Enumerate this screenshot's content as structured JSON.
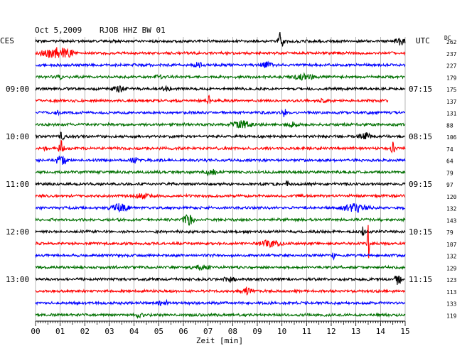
{
  "header": {
    "date": "Oct 5,2009",
    "station": "RJOB HHZ BW 01",
    "left_tz": "CES",
    "right_tz": "UTC",
    "dc_label": "DC"
  },
  "chart_data": {
    "type": "line",
    "title": "",
    "xlabel": "Zeit [min]",
    "xlim": [
      0,
      15
    ],
    "x_ticks": [
      "00",
      "01",
      "02",
      "03",
      "04",
      "05",
      "06",
      "07",
      "08",
      "09",
      "10",
      "11",
      "12",
      "13",
      "14",
      "15"
    ],
    "trace_colors": [
      "#000000",
      "#ff0000",
      "#0000ff",
      "#007000"
    ],
    "left_time_labels": [
      {
        "row": 4,
        "text": "09:00"
      },
      {
        "row": 8,
        "text": "10:00"
      },
      {
        "row": 12,
        "text": "11:00"
      },
      {
        "row": 16,
        "text": "12:00"
      },
      {
        "row": 20,
        "text": "13:00"
      }
    ],
    "right_time_labels": [
      {
        "row": 4,
        "text": "07:15"
      },
      {
        "row": 8,
        "text": "08:15"
      },
      {
        "row": 12,
        "text": "09:15"
      },
      {
        "row": 16,
        "text": "10:15"
      },
      {
        "row": 20,
        "text": "11:15"
      }
    ],
    "dc_offsets": [
      262,
      237,
      227,
      179,
      175,
      137,
      131,
      88,
      106,
      74,
      64,
      79,
      97,
      120,
      132,
      143,
      79,
      107,
      132,
      129,
      123,
      113,
      133,
      119
    ],
    "rows": 24,
    "trace_end_min": [
      15,
      15,
      15,
      15,
      15,
      14.3,
      15,
      15,
      15,
      15,
      15,
      15,
      15,
      15,
      15,
      15,
      15,
      15,
      15,
      15,
      15,
      15,
      15,
      15
    ],
    "events": [
      {
        "row": 0,
        "t": 9.95,
        "amp": 14,
        "dur": 0.15
      },
      {
        "row": 0,
        "t": 14.8,
        "amp": 5,
        "dur": 0.3
      },
      {
        "row": 1,
        "t": 0.9,
        "amp": 9,
        "dur": 0.9
      },
      {
        "row": 2,
        "t": 9.4,
        "amp": 4,
        "dur": 0.4
      },
      {
        "row": 2,
        "t": 6.6,
        "amp": 3,
        "dur": 0.3
      },
      {
        "row": 3,
        "t": 10.9,
        "amp": 4,
        "dur": 0.6
      },
      {
        "row": 3,
        "t": 5.0,
        "amp": 3,
        "dur": 0.2
      },
      {
        "row": 3,
        "t": 1.0,
        "amp": 3,
        "dur": 0.2
      },
      {
        "row": 4,
        "t": 3.4,
        "amp": 4,
        "dur": 0.4
      },
      {
        "row": 4,
        "t": 5.3,
        "amp": 3,
        "dur": 0.3
      },
      {
        "row": 5,
        "t": 7.0,
        "amp": 9,
        "dur": 0.12
      },
      {
        "row": 5,
        "t": 11.7,
        "amp": 3,
        "dur": 0.2
      },
      {
        "row": 6,
        "t": 10.1,
        "amp": 6,
        "dur": 0.15
      },
      {
        "row": 6,
        "t": 0.9,
        "amp": 3,
        "dur": 0.2
      },
      {
        "row": 7,
        "t": 8.4,
        "amp": 5,
        "dur": 0.6
      },
      {
        "row": 7,
        "t": 10.4,
        "amp": 3,
        "dur": 0.3
      },
      {
        "row": 8,
        "t": 1.05,
        "amp": 6,
        "dur": 0.15
      },
      {
        "row": 8,
        "t": 13.4,
        "amp": 4,
        "dur": 0.4
      },
      {
        "row": 9,
        "t": 1.05,
        "amp": 10,
        "dur": 0.15
      },
      {
        "row": 9,
        "t": 14.5,
        "amp": 10,
        "dur": 0.12
      },
      {
        "row": 9,
        "t": 0.4,
        "amp": 4,
        "dur": 0.1
      },
      {
        "row": 10,
        "t": 1.05,
        "amp": 8,
        "dur": 0.3
      },
      {
        "row": 10,
        "t": 4.0,
        "amp": 4,
        "dur": 0.2
      },
      {
        "row": 11,
        "t": 7.1,
        "amp": 4,
        "dur": 0.4
      },
      {
        "row": 12,
        "t": 10.2,
        "amp": 6,
        "dur": 0.12
      },
      {
        "row": 13,
        "t": 4.3,
        "amp": 3,
        "dur": 0.5
      },
      {
        "row": 14,
        "t": 3.4,
        "amp": 5,
        "dur": 0.6
      },
      {
        "row": 14,
        "t": 13.0,
        "amp": 6,
        "dur": 0.8
      },
      {
        "row": 15,
        "t": 6.2,
        "amp": 9,
        "dur": 0.3
      },
      {
        "row": 16,
        "t": 13.3,
        "amp": 11,
        "dur": 0.08
      },
      {
        "row": 17,
        "t": 9.5,
        "amp": 4,
        "dur": 0.7
      },
      {
        "row": 17,
        "t": 13.5,
        "amp": 26,
        "dur": 0.08
      },
      {
        "row": 18,
        "t": 12.1,
        "amp": 5,
        "dur": 0.08
      },
      {
        "row": 19,
        "t": 6.7,
        "amp": 3,
        "dur": 0.5
      },
      {
        "row": 20,
        "t": 14.7,
        "amp": 7,
        "dur": 0.2
      },
      {
        "row": 20,
        "t": 7.9,
        "amp": 3,
        "dur": 0.4
      },
      {
        "row": 21,
        "t": 8.6,
        "amp": 5,
        "dur": 0.3
      },
      {
        "row": 22,
        "t": 5.2,
        "amp": 3,
        "dur": 0.4
      },
      {
        "row": 23,
        "t": 4.2,
        "amp": 3,
        "dur": 0.3
      }
    ]
  }
}
